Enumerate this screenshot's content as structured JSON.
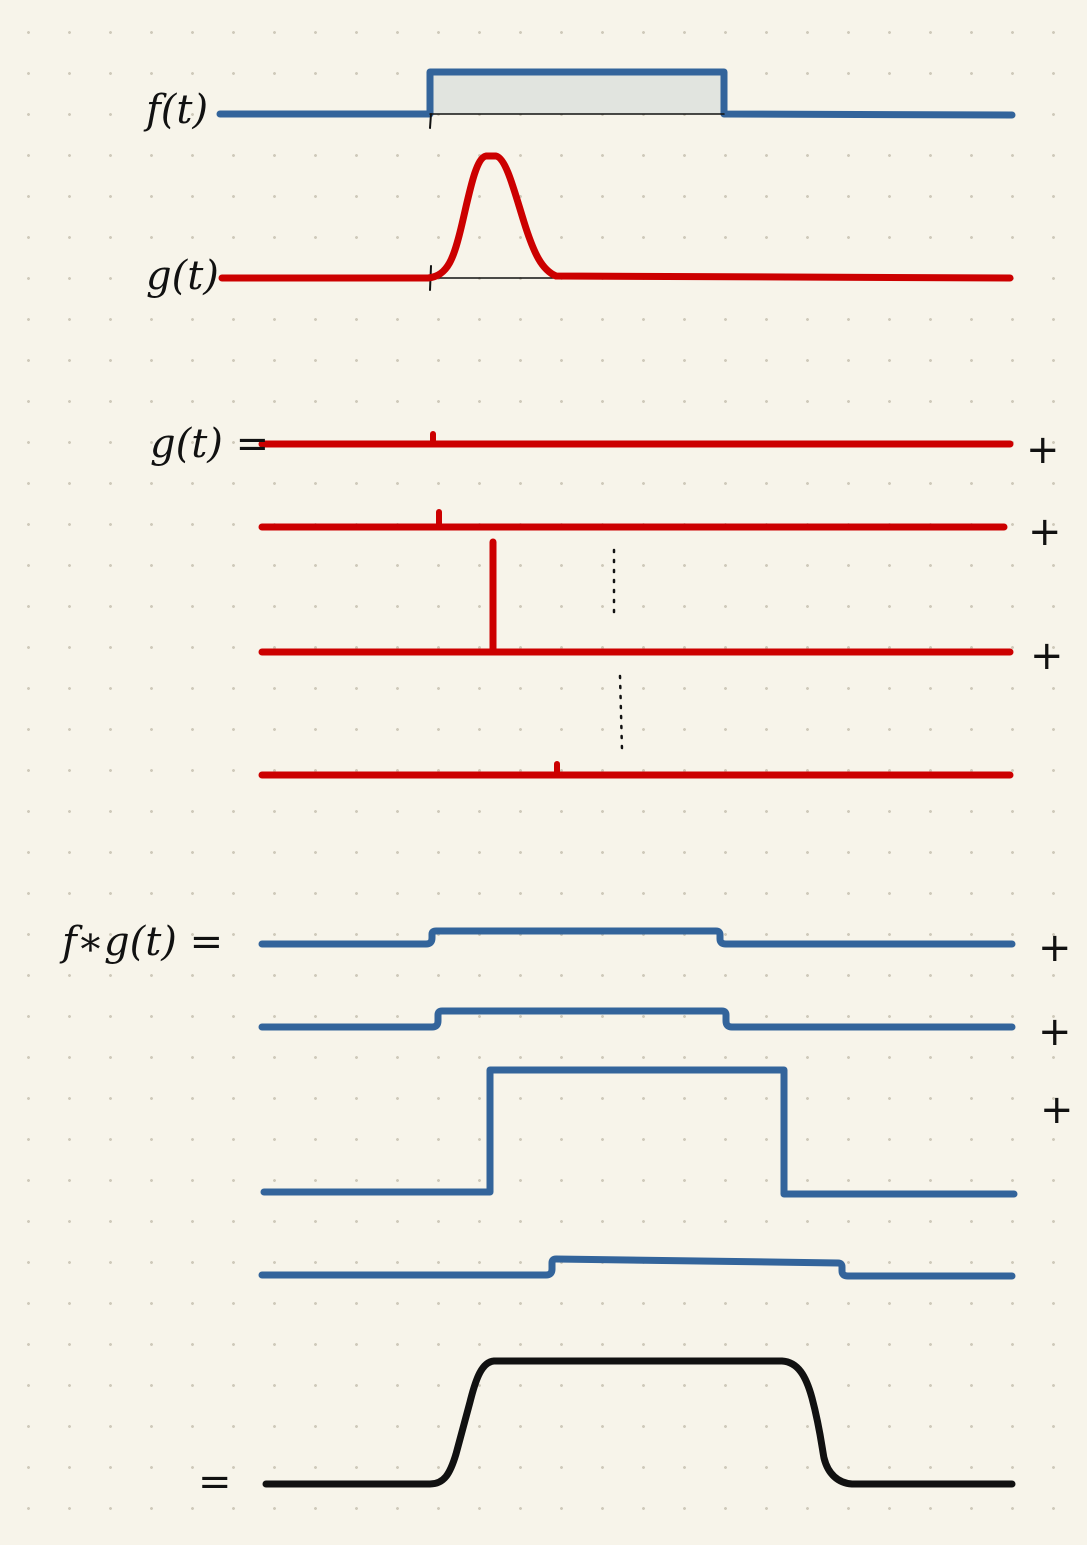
{
  "labels": {
    "f": "f(t)",
    "g": "g(t)",
    "g_decomp": "g(t) =",
    "conv": "f∗g(t) =",
    "result": "=",
    "plus": "+"
  },
  "colors": {
    "background": "#f7f4ea",
    "grid_dot": "#cfcabb",
    "f_signal": "#33649b",
    "f_fill": "#e1e4df",
    "g_signal": "#cc0000",
    "result": "#111111",
    "ink": "#111111"
  }
}
